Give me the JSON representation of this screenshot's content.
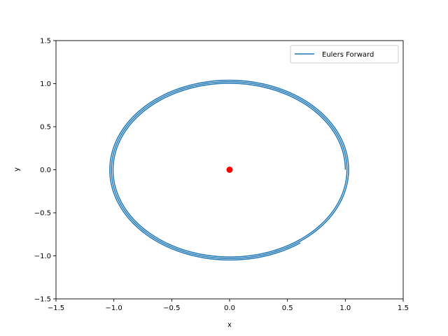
{
  "chart_data": {
    "type": "line",
    "xlabel": "x",
    "ylabel": "y",
    "xlim": [
      -1.5,
      1.5
    ],
    "ylim": [
      -1.5,
      1.5
    ],
    "xticks": [
      -1.5,
      -1.0,
      -0.5,
      0.0,
      0.5,
      1.0,
      1.5
    ],
    "yticks": [
      -1.5,
      -1.0,
      -0.5,
      0.0,
      0.5,
      1.0,
      1.5
    ],
    "xtick_labels": [
      "−1.5",
      "−1.0",
      "−0.5",
      "0.0",
      "0.5",
      "1.0",
      "1.5"
    ],
    "ytick_labels": [
      "−1.5",
      "−1.0",
      "−0.5",
      "0.0",
      "0.5",
      "1.0",
      "1.5"
    ],
    "grid": false,
    "legend_position": "top-right",
    "series": [
      {
        "name": "Eulers Forward",
        "color": "#1f77b4",
        "parametric": {
          "start": [
            1.0,
            0.0
          ],
          "end": [
            0.65,
            -0.84
          ],
          "x_radius_start": 1.0,
          "x_radius_end": 1.04,
          "y_radius_start": 1.0,
          "y_radius_end": 1.05,
          "turns": 2.85,
          "direction": "counterclockwise"
        }
      }
    ],
    "markers": [
      {
        "x": 0.0,
        "y": 0.0,
        "color": "#ff0000",
        "shape": "circle"
      }
    ]
  }
}
